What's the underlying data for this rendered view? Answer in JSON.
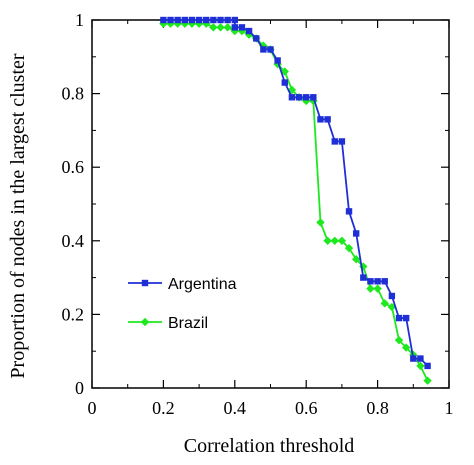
{
  "chart_data": {
    "type": "line",
    "xlabel": "Correlation threshold",
    "ylabel": "Proportion of nodes in the largest cluster",
    "xlim": [
      0,
      1
    ],
    "ylim": [
      0,
      1.0
    ],
    "x_ticks": [
      "0",
      "0.2",
      "0.4",
      "0.6",
      "0.8",
      "1"
    ],
    "y_ticks": [
      "0",
      "0.2",
      "0.4",
      "0.6",
      "0.8",
      "1"
    ],
    "x_tick_values": [
      0,
      0.2,
      0.4,
      0.6,
      0.8,
      1.0
    ],
    "y_tick_values": [
      0,
      0.2,
      0.4,
      0.6,
      0.8,
      1.0
    ],
    "grid": false,
    "legend_position": "left-middle",
    "series": [
      {
        "name": "Argentina",
        "color": "#1f2fd6",
        "marker": "square",
        "points": [
          [
            0.2,
            1.0
          ],
          [
            0.22,
            1.0
          ],
          [
            0.24,
            1.0
          ],
          [
            0.26,
            1.0
          ],
          [
            0.28,
            1.0
          ],
          [
            0.3,
            1.0
          ],
          [
            0.32,
            1.0
          ],
          [
            0.34,
            1.0
          ],
          [
            0.36,
            1.0
          ],
          [
            0.38,
            1.0
          ],
          [
            0.4,
            1.0
          ],
          [
            0.4,
            0.98
          ],
          [
            0.42,
            0.98
          ],
          [
            0.44,
            0.97
          ],
          [
            0.46,
            0.95
          ],
          [
            0.48,
            0.92
          ],
          [
            0.5,
            0.92
          ],
          [
            0.52,
            0.89
          ],
          [
            0.54,
            0.83
          ],
          [
            0.56,
            0.79
          ],
          [
            0.58,
            0.79
          ],
          [
            0.6,
            0.79
          ],
          [
            0.62,
            0.79
          ],
          [
            0.64,
            0.73
          ],
          [
            0.66,
            0.73
          ],
          [
            0.68,
            0.67
          ],
          [
            0.7,
            0.67
          ],
          [
            0.72,
            0.48
          ],
          [
            0.74,
            0.42
          ],
          [
            0.76,
            0.3
          ],
          [
            0.78,
            0.29
          ],
          [
            0.8,
            0.29
          ],
          [
            0.82,
            0.29
          ],
          [
            0.84,
            0.25
          ],
          [
            0.86,
            0.19
          ],
          [
            0.88,
            0.19
          ],
          [
            0.9,
            0.08
          ],
          [
            0.92,
            0.08
          ],
          [
            0.94,
            0.06
          ]
        ]
      },
      {
        "name": "Brazil",
        "color": "#1ee81e",
        "marker": "diamond",
        "points": [
          [
            0.2,
            0.99
          ],
          [
            0.22,
            0.99
          ],
          [
            0.24,
            0.99
          ],
          [
            0.26,
            0.99
          ],
          [
            0.28,
            0.99
          ],
          [
            0.3,
            0.99
          ],
          [
            0.32,
            0.99
          ],
          [
            0.34,
            0.98
          ],
          [
            0.36,
            0.98
          ],
          [
            0.38,
            0.98
          ],
          [
            0.4,
            0.97
          ],
          [
            0.42,
            0.97
          ],
          [
            0.44,
            0.96
          ],
          [
            0.46,
            0.95
          ],
          [
            0.48,
            0.93
          ],
          [
            0.5,
            0.92
          ],
          [
            0.52,
            0.88
          ],
          [
            0.54,
            0.86
          ],
          [
            0.56,
            0.81
          ],
          [
            0.58,
            0.79
          ],
          [
            0.6,
            0.78
          ],
          [
            0.62,
            0.78
          ],
          [
            0.64,
            0.45
          ],
          [
            0.66,
            0.4
          ],
          [
            0.68,
            0.4
          ],
          [
            0.7,
            0.4
          ],
          [
            0.72,
            0.38
          ],
          [
            0.74,
            0.35
          ],
          [
            0.76,
            0.33
          ],
          [
            0.78,
            0.27
          ],
          [
            0.8,
            0.27
          ],
          [
            0.82,
            0.23
          ],
          [
            0.84,
            0.22
          ],
          [
            0.86,
            0.13
          ],
          [
            0.88,
            0.11
          ],
          [
            0.9,
            0.09
          ],
          [
            0.92,
            0.06
          ],
          [
            0.94,
            0.02
          ]
        ]
      }
    ]
  }
}
